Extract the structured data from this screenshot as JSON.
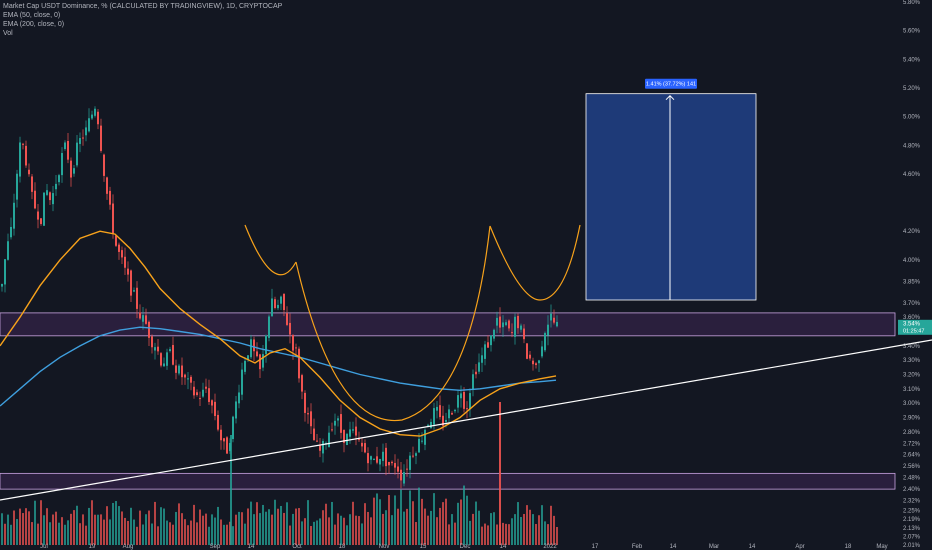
{
  "header": {
    "title": "Market Cap USDT Dominance, % (CALCULATED BY TRADINGVIEW), 1D, CRYPTOCAP",
    "ema50": "EMA (50, close, 0)",
    "ema200": "EMA (200, close, 0)",
    "vol": "Vol"
  },
  "price_badge": {
    "value": "3.54%",
    "countdown": "01:25:47"
  },
  "measure_label": "1.41% (37.72%) 141",
  "colors": {
    "background": "#131722",
    "up": "#26a69a",
    "down": "#ef5350",
    "ema50": "#f7a21b",
    "ema200": "#3f9fde",
    "zone": "#2a1f3d",
    "zone_border": "#c9a4e0",
    "target": "#1e3a78",
    "trendline": "#ffffff",
    "badge": "#26a69a"
  },
  "chart_data": {
    "type": "candlestick",
    "y_axis_unit": "%",
    "ylim": [
      2.01,
      5.8
    ],
    "y_ticks": [
      "5.80%",
      "5.60%",
      "5.40%",
      "5.20%",
      "5.00%",
      "4.80%",
      "4.60%",
      "4.20%",
      "4.00%",
      "3.85%",
      "3.70%",
      "3.60%",
      "3.50%",
      "3.40%",
      "3.30%",
      "3.20%",
      "3.10%",
      "3.00%",
      "2.90%",
      "2.80%",
      "2.72%",
      "2.64%",
      "2.56%",
      "2.48%",
      "2.40%",
      "2.32%",
      "2.25%",
      "2.19%",
      "2.13%",
      "2.07%",
      "2.01%"
    ],
    "x_ticks": [
      "Jul",
      "19",
      "Aug",
      "Sep",
      "14",
      "Oct",
      "18",
      "Nov",
      "15",
      "Dec",
      "14",
      "2022",
      "17",
      "Feb",
      "14",
      "Mar",
      "14",
      "Apr",
      "18",
      "May"
    ],
    "ema50_label": "EMA (50, close, 0)",
    "ema200_label": "EMA (200, close, 0)",
    "support_zone": [
      2.4,
      2.51
    ],
    "resistance_zone": [
      3.47,
      3.63
    ],
    "target_box": {
      "from": 3.72,
      "to": 5.16
    },
    "measure": {
      "change_pct": 1.41,
      "change_rel_pct": 37.72,
      "bars": 141
    },
    "last_price": 3.54,
    "price_path": [
      [
        0,
        3.8
      ],
      [
        5,
        4.05
      ],
      [
        10,
        4.2
      ],
      [
        15,
        4.55
      ],
      [
        20,
        4.85
      ],
      [
        25,
        4.7
      ],
      [
        30,
        4.45
      ],
      [
        35,
        4.35
      ],
      [
        40,
        4.3
      ],
      [
        45,
        4.5
      ],
      [
        50,
        4.4
      ],
      [
        55,
        4.55
      ],
      [
        60,
        4.7
      ],
      [
        65,
        4.8
      ],
      [
        70,
        4.6
      ],
      [
        75,
        4.75
      ],
      [
        80,
        4.85
      ],
      [
        85,
        4.9
      ],
      [
        90,
        5.0
      ],
      [
        95,
        5.1
      ],
      [
        100,
        4.8
      ],
      [
        105,
        4.5
      ],
      [
        110,
        4.3
      ],
      [
        115,
        4.1
      ],
      [
        120,
        4.0
      ],
      [
        125,
        3.9
      ],
      [
        130,
        3.8
      ],
      [
        135,
        3.7
      ],
      [
        140,
        3.6
      ],
      [
        145,
        3.55
      ],
      [
        150,
        3.45
      ],
      [
        155,
        3.4
      ],
      [
        160,
        3.3
      ],
      [
        165,
        3.3
      ],
      [
        170,
        3.35
      ],
      [
        175,
        3.25
      ],
      [
        180,
        3.2
      ],
      [
        185,
        3.15
      ],
      [
        190,
        3.1
      ],
      [
        195,
        3.05
      ],
      [
        200,
        3.05
      ],
      [
        205,
        3.1
      ],
      [
        210,
        3.0
      ],
      [
        215,
        2.9
      ],
      [
        220,
        2.75
      ],
      [
        225,
        2.65
      ],
      [
        230,
        2.8
      ],
      [
        235,
        3.0
      ],
      [
        240,
        3.2
      ],
      [
        245,
        3.35
      ],
      [
        250,
        3.4
      ],
      [
        255,
        3.3
      ],
      [
        260,
        3.2
      ],
      [
        265,
        3.5
      ],
      [
        270,
        3.7
      ],
      [
        275,
        3.65
      ],
      [
        280,
        3.7
      ],
      [
        285,
        3.6
      ],
      [
        290,
        3.45
      ],
      [
        295,
        3.35
      ],
      [
        300,
        3.1
      ],
      [
        305,
        2.95
      ],
      [
        310,
        2.8
      ],
      [
        315,
        2.7
      ],
      [
        320,
        2.65
      ],
      [
        325,
        2.75
      ],
      [
        330,
        2.85
      ],
      [
        335,
        2.9
      ],
      [
        340,
        2.8
      ],
      [
        345,
        2.75
      ],
      [
        350,
        2.8
      ],
      [
        355,
        2.75
      ],
      [
        360,
        2.7
      ],
      [
        365,
        2.65
      ],
      [
        370,
        2.6
      ],
      [
        375,
        2.6
      ],
      [
        380,
        2.65
      ],
      [
        385,
        2.6
      ],
      [
        390,
        2.55
      ],
      [
        395,
        2.58
      ],
      [
        400,
        2.5
      ],
      [
        405,
        2.55
      ],
      [
        410,
        2.65
      ],
      [
        415,
        2.7
      ],
      [
        420,
        2.75
      ],
      [
        425,
        2.85
      ],
      [
        430,
        2.9
      ],
      [
        435,
        2.95
      ],
      [
        440,
        2.85
      ],
      [
        445,
        2.9
      ],
      [
        450,
        2.95
      ],
      [
        455,
        3.0
      ],
      [
        460,
        3.1
      ],
      [
        465,
        2.95
      ],
      [
        470,
        3.15
      ],
      [
        475,
        3.25
      ],
      [
        480,
        3.3
      ],
      [
        485,
        3.4
      ],
      [
        490,
        3.45
      ],
      [
        495,
        3.6
      ],
      [
        500,
        3.5
      ],
      [
        505,
        3.55
      ],
      [
        510,
        3.45
      ],
      [
        515,
        3.6
      ],
      [
        520,
        3.5
      ],
      [
        525,
        3.35
      ],
      [
        530,
        3.3
      ],
      [
        535,
        3.25
      ],
      [
        540,
        3.4
      ],
      [
        545,
        3.55
      ],
      [
        550,
        3.6
      ],
      [
        555,
        3.54
      ]
    ],
    "ema50_path": [
      [
        0,
        3.4
      ],
      [
        20,
        3.6
      ],
      [
        40,
        3.82
      ],
      [
        60,
        4.0
      ],
      [
        80,
        4.15
      ],
      [
        100,
        4.2
      ],
      [
        115,
        4.18
      ],
      [
        130,
        4.08
      ],
      [
        145,
        3.95
      ],
      [
        160,
        3.8
      ],
      [
        180,
        3.66
      ],
      [
        200,
        3.55
      ],
      [
        220,
        3.45
      ],
      [
        240,
        3.33
      ],
      [
        255,
        3.28
      ],
      [
        270,
        3.35
      ],
      [
        285,
        3.38
      ],
      [
        300,
        3.32
      ],
      [
        320,
        3.18
      ],
      [
        340,
        3.02
      ],
      [
        360,
        2.9
      ],
      [
        380,
        2.82
      ],
      [
        400,
        2.78
      ],
      [
        420,
        2.77
      ],
      [
        440,
        2.82
      ],
      [
        460,
        2.9
      ],
      [
        480,
        3.02
      ],
      [
        500,
        3.1
      ],
      [
        520,
        3.14
      ],
      [
        540,
        3.17
      ],
      [
        556,
        3.19
      ]
    ],
    "ema200_path": [
      [
        0,
        2.98
      ],
      [
        20,
        3.1
      ],
      [
        40,
        3.22
      ],
      [
        60,
        3.32
      ],
      [
        80,
        3.4
      ],
      [
        100,
        3.47
      ],
      [
        120,
        3.51
      ],
      [
        140,
        3.53
      ],
      [
        160,
        3.52
      ],
      [
        180,
        3.5
      ],
      [
        200,
        3.48
      ],
      [
        220,
        3.45
      ],
      [
        240,
        3.42
      ],
      [
        260,
        3.38
      ],
      [
        280,
        3.35
      ],
      [
        300,
        3.32
      ],
      [
        320,
        3.28
      ],
      [
        340,
        3.24
      ],
      [
        360,
        3.2
      ],
      [
        380,
        3.17
      ],
      [
        400,
        3.14
      ],
      [
        420,
        3.12
      ],
      [
        440,
        3.1
      ],
      [
        460,
        3.09
      ],
      [
        480,
        3.1
      ],
      [
        500,
        3.12
      ],
      [
        520,
        3.14
      ],
      [
        540,
        3.15
      ],
      [
        556,
        3.16
      ]
    ]
  }
}
